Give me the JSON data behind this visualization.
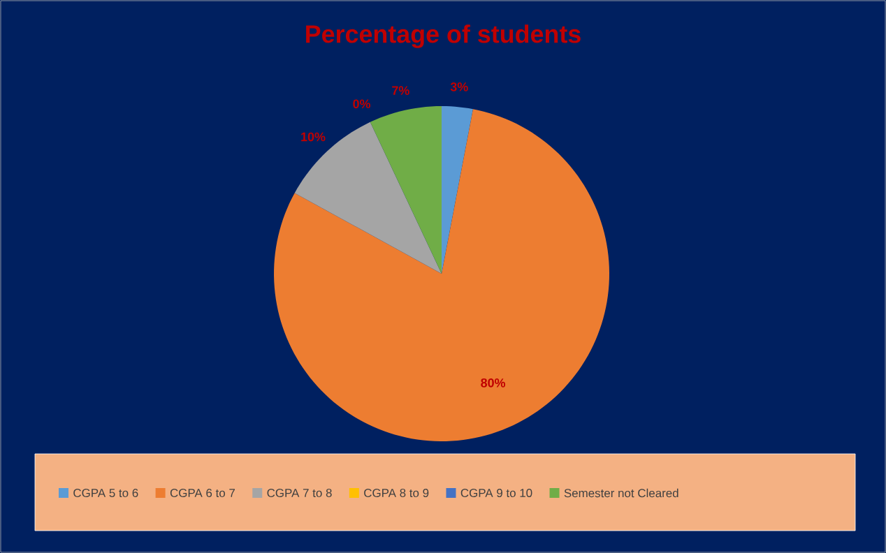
{
  "chart_data": {
    "type": "pie",
    "title": "Percentage of students",
    "categories": [
      "CGPA 5 to 6",
      "CGPA 6 to 7",
      "CGPA 7 to 8",
      "CGPA 8 to 9",
      "CGPA 9 to 10",
      "Semester not Cleared"
    ],
    "values": [
      3,
      80,
      10,
      0,
      0,
      7
    ],
    "colors": [
      "#5b9bd5",
      "#ed7d31",
      "#a5a5a5",
      "#ffc000",
      "#4472c4",
      "#70ad47"
    ],
    "value_labels": [
      "3%",
      "80%",
      "10%",
      "0%",
      null,
      "7%"
    ],
    "legend": "bottom"
  }
}
